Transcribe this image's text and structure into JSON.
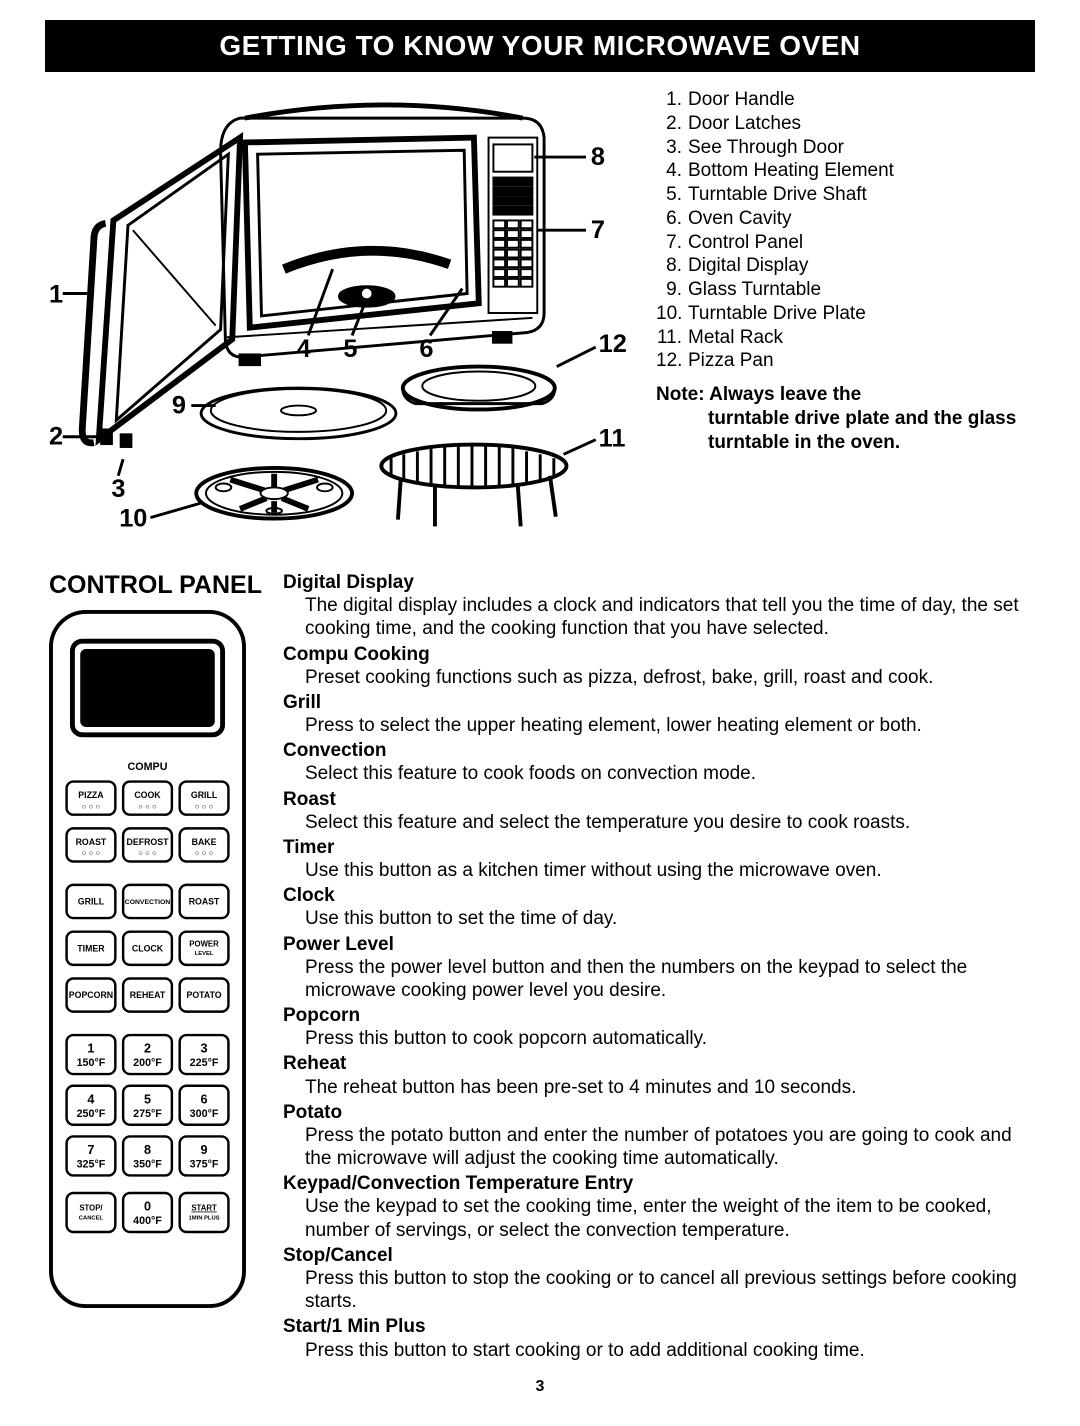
{
  "title": "GETTING TO KNOW YOUR MICROWAVE OVEN",
  "parts": [
    {
      "n": "1.",
      "label": "Door Handle"
    },
    {
      "n": "2.",
      "label": "Door Latches"
    },
    {
      "n": "3.",
      "label": "See Through Door"
    },
    {
      "n": "4.",
      "label": "Bottom Heating Element"
    },
    {
      "n": "5.",
      "label": "Turntable Drive Shaft"
    },
    {
      "n": "6.",
      "label": "Oven Cavity"
    },
    {
      "n": "7.",
      "label": "Control Panel"
    },
    {
      "n": "8.",
      "label": "Digital Display"
    },
    {
      "n": "9.",
      "label": "Glass Turntable"
    },
    {
      "n": "10.",
      "label": "Turntable Drive Plate"
    },
    {
      "n": "11.",
      "label": "Metal Rack"
    },
    {
      "n": "12.",
      "label": "Pizza Pan"
    }
  ],
  "note_label": "Note:",
  "note_first": "Always leave the",
  "note_rest": "turntable drive plate and the glass turntable in the oven.",
  "control_panel_heading": "CONTROL PANEL",
  "panel": {
    "compu": "COMPU",
    "row1": [
      "PIZZA",
      "COOK",
      "GRILL"
    ],
    "row2": [
      "ROAST",
      "DEFROST",
      "BAKE"
    ],
    "row3": [
      "GRILL",
      "CONVECTION",
      "ROAST"
    ],
    "row4": [
      "TIMER",
      "CLOCK",
      "POWER LEVEL"
    ],
    "row5": [
      "POPCORN",
      "REHEAT",
      "POTATO"
    ],
    "numpad": [
      {
        "n": "1",
        "t": "150°F"
      },
      {
        "n": "2",
        "t": "200°F"
      },
      {
        "n": "3",
        "t": "225°F"
      },
      {
        "n": "4",
        "t": "250°F"
      },
      {
        "n": "5",
        "t": "275°F"
      },
      {
        "n": "6",
        "t": "300°F"
      },
      {
        "n": "7",
        "t": "325°F"
      },
      {
        "n": "8",
        "t": "350°F"
      },
      {
        "n": "9",
        "t": "375°F"
      }
    ],
    "bottom": [
      {
        "a": "STOP/",
        "b": "CANCEL"
      },
      {
        "a": "0",
        "b": "400°F"
      },
      {
        "a": "START",
        "b": "1MIN PLUS"
      }
    ]
  },
  "descriptions": [
    {
      "label": "Digital Display",
      "body": "The digital display includes a clock and indicators that tell you the time of day, the set cooking time, and the cooking function that you have selected."
    },
    {
      "label": "Compu Cooking",
      "body": "Preset cooking functions such as pizza, defrost, bake, grill, roast and cook."
    },
    {
      "label": "Grill",
      "body": "Press to select the upper heating element, lower heating element or both."
    },
    {
      "label": "Convection",
      "body": "Select this feature to cook foods on convection mode."
    },
    {
      "label": "Roast",
      "body": "Select this feature and select the temperature you desire to cook roasts."
    },
    {
      "label": "Timer",
      "body": "Use this button as a kitchen timer without using the microwave oven."
    },
    {
      "label": "Clock",
      "body": "Use this button to set the time of day."
    },
    {
      "label": "Power Level",
      "body": "Press the power level button and then the numbers on the keypad to select the microwave cooking power level you desire."
    },
    {
      "label": "Popcorn",
      "body": "Press this button to cook popcorn automatically."
    },
    {
      "label": "Reheat",
      "body": "The reheat button has been pre-set to 4 minutes and 10 seconds."
    },
    {
      "label": "Potato",
      "body": "Press the potato button and enter the number of potatoes you are going to cook and the microwave will adjust the cooking time automatically."
    },
    {
      "label": "Keypad/Convection Temperature Entry",
      "body": "Use the keypad to set the cooking time, enter the weight of the item to be cooked, number of servings, or select the convection temperature."
    },
    {
      "label": "Stop/Cancel",
      "body": "Press this button to stop the cooking or to cancel all previous settings before cooking starts."
    },
    {
      "label": "Start/1 Min Plus",
      "body": "Press this button to start cooking or to add additional cooking time."
    }
  ],
  "callouts": [
    "1",
    "2",
    "3",
    "4",
    "5",
    "6",
    "7",
    "8",
    "9",
    "10",
    "11",
    "12"
  ],
  "page_number": "3"
}
